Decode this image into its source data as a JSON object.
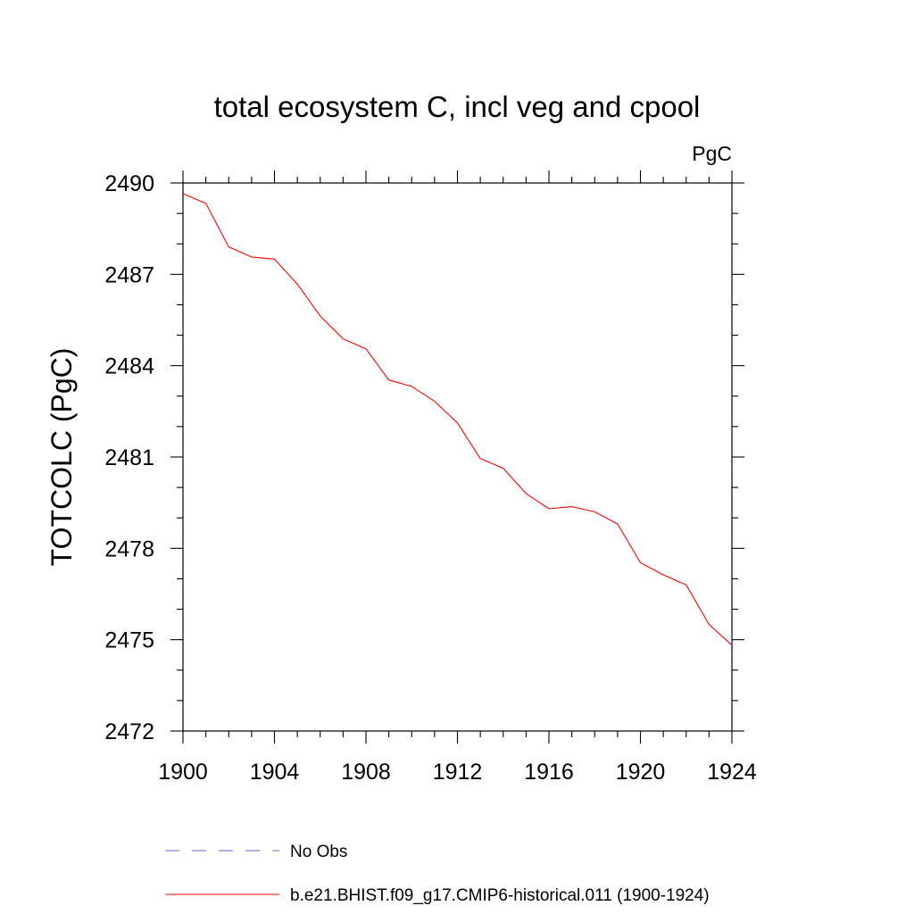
{
  "chart_data": {
    "type": "line",
    "title": "total ecosystem C, incl veg and cpool",
    "units": "PgC",
    "xlabel": "",
    "ylabel": "TOTCOLC  (PgC)",
    "xlim": [
      1900,
      1924
    ],
    "ylim": [
      2472,
      2490
    ],
    "x_ticks": [
      1900,
      1904,
      1908,
      1912,
      1916,
      1920,
      1924
    ],
    "x_tick_labels": [
      "1900",
      "1904",
      "1908",
      "1912",
      "1916",
      "1920",
      "1924"
    ],
    "y_ticks": [
      2472,
      2475,
      2478,
      2481,
      2484,
      2487,
      2490
    ],
    "y_tick_labels": [
      "2472",
      "2475",
      "2478",
      "2481",
      "2484",
      "2487",
      "2490"
    ],
    "grid": false,
    "legend_position": "bottom",
    "series": [
      {
        "name": "b.e21.BHIST.f09_g17.CMIP6-historical.011 (1900-1924)",
        "color": "#ff0000",
        "line_style": "solid",
        "x": [
          1900,
          1901,
          1902,
          1903,
          1904,
          1905,
          1906,
          1907,
          1908,
          1909,
          1910,
          1911,
          1912,
          1913,
          1914,
          1915,
          1916,
          1917,
          1918,
          1919,
          1920,
          1921,
          1922,
          1923,
          1924
        ],
        "values": [
          2489.65,
          2489.33,
          2487.9,
          2487.57,
          2487.5,
          2486.68,
          2485.63,
          2484.88,
          2484.55,
          2483.53,
          2483.32,
          2482.83,
          2482.12,
          2480.95,
          2480.63,
          2479.8,
          2479.3,
          2479.37,
          2479.2,
          2478.8,
          2477.53,
          2477.13,
          2476.8,
          2475.5,
          2474.82
        ]
      }
    ],
    "legend": [
      {
        "label": "No Obs",
        "color": "#6b5cc7",
        "line_style": "dashed"
      },
      {
        "label": "b.e21.BHIST.f09_g17.CMIP6-historical.011 (1900-1924)",
        "color": "#ff0000",
        "line_style": "solid"
      }
    ]
  }
}
